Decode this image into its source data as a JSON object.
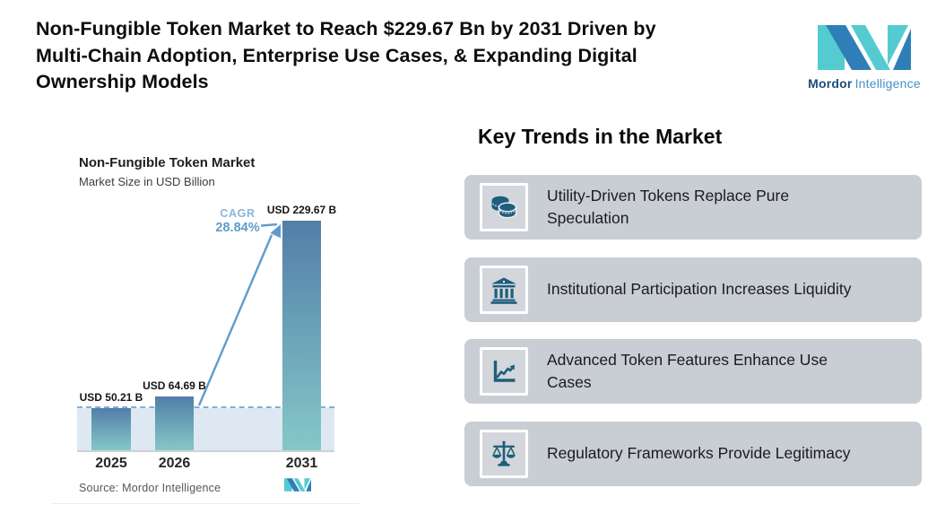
{
  "header": {
    "title": "Non-Fungible Token Market to Reach $229.67 Bn by 2031 Driven by\nMulti-Chain Adoption, Enterprise Use Cases, & Expanding Digital\nOwnership Models",
    "brand": {
      "name_bold": "Mordor",
      "name_light": "Intelligence"
    }
  },
  "chart": {
    "title": "Non-Fungible Token Market",
    "subtitle": "Market Size in USD Billion",
    "cagr_label": "CAGR",
    "cagr_value": "28.84%",
    "source": "Source: Mordor Intelligence"
  },
  "chart_data": {
    "type": "bar",
    "title": "Non-Fungible Token Market",
    "subtitle": "Market Size in USD Billion",
    "unit": "USD Billion",
    "categories": [
      "2025",
      "2026",
      "2031"
    ],
    "values": [
      50.21,
      64.69,
      229.67
    ],
    "value_labels": [
      "USD 50.21 B",
      "USD 64.69 B",
      "USD 229.67 B"
    ],
    "cagr": "28.84%",
    "grid": false,
    "legend": false,
    "reference_line_at_value": 50.21
  },
  "trends": {
    "heading": "Key Trends in the Market",
    "items": [
      {
        "icon": "coins-icon",
        "label": "Utility-Driven Tokens Replace Pure\nSpeculation"
      },
      {
        "icon": "bank-icon",
        "label": "Institutional Participation Increases Liquidity"
      },
      {
        "icon": "line-chart-icon",
        "label": "Advanced Token Features Enhance Use\nCases"
      },
      {
        "icon": "scales-icon",
        "label": "Regulatory Frameworks Provide Legitimacy"
      }
    ]
  },
  "colors": {
    "brand_teal": "#54cbd0",
    "brand_blue": "#2e7fb7",
    "bar_top": "#527ea8",
    "bar_bottom": "#85c8c8",
    "dashed_line": "#85aed2",
    "band": "#dde8f2",
    "cagr_text": "#5e9cca",
    "card_bg": "#c9ced4",
    "icon_color": "#1f5d7c"
  }
}
